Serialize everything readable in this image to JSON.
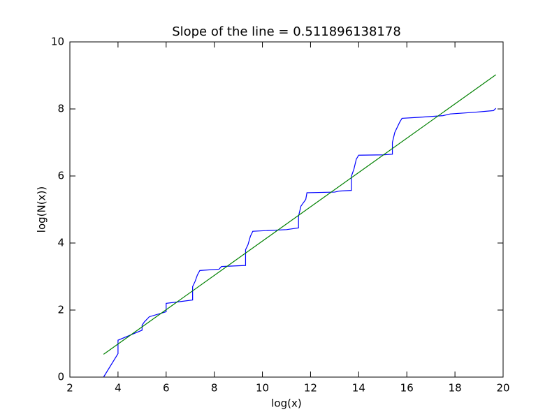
{
  "chart_data": {
    "type": "line",
    "title": "Slope of the line = 0.511896138178",
    "x_label": "log(x)",
    "y_label": "log(N(x))",
    "xlim": [
      2,
      20
    ],
    "xticks": [
      2,
      4,
      6,
      8,
      10,
      12,
      14,
      16,
      18,
      20
    ],
    "ylim": [
      0,
      10
    ],
    "yticks": [
      0,
      2,
      4,
      6,
      8,
      10
    ],
    "grid": false,
    "series": [
      {
        "color": "#0000ff",
        "x": [
          3.4,
          4.0,
          4.0,
          5.0,
          5.0,
          5.1,
          5.3,
          6.0,
          6.0,
          7.1,
          7.1,
          7.2,
          7.3,
          7.4,
          8.2,
          8.3,
          9.3,
          9.3,
          9.4,
          9.5,
          9.6,
          11.0,
          11.5,
          11.5,
          11.6,
          11.8,
          11.85,
          13.0,
          13.2,
          13.7,
          13.7,
          13.8,
          13.9,
          14.0,
          15.0,
          15.4,
          15.4,
          15.5,
          15.7,
          15.8,
          16.5,
          17.5,
          17.8,
          18.8,
          19.6,
          19.7
        ],
        "values": [
          0,
          0.7,
          1.1,
          1.4,
          1.55,
          1.65,
          1.8,
          1.95,
          2.2,
          2.3,
          2.7,
          2.85,
          3.05,
          3.18,
          3.22,
          3.3,
          3.33,
          3.8,
          3.95,
          4.2,
          4.35,
          4.4,
          4.45,
          4.8,
          5.1,
          5.3,
          5.5,
          5.52,
          5.55,
          5.57,
          6.0,
          6.2,
          6.5,
          6.62,
          6.63,
          6.65,
          7.0,
          7.3,
          7.6,
          7.72,
          7.75,
          7.8,
          7.85,
          7.9,
          7.95,
          8.02
        ]
      },
      {
        "color": "#008000",
        "x": [
          3.4,
          19.7
        ],
        "values": [
          0.68,
          9.02
        ]
      }
    ]
  }
}
